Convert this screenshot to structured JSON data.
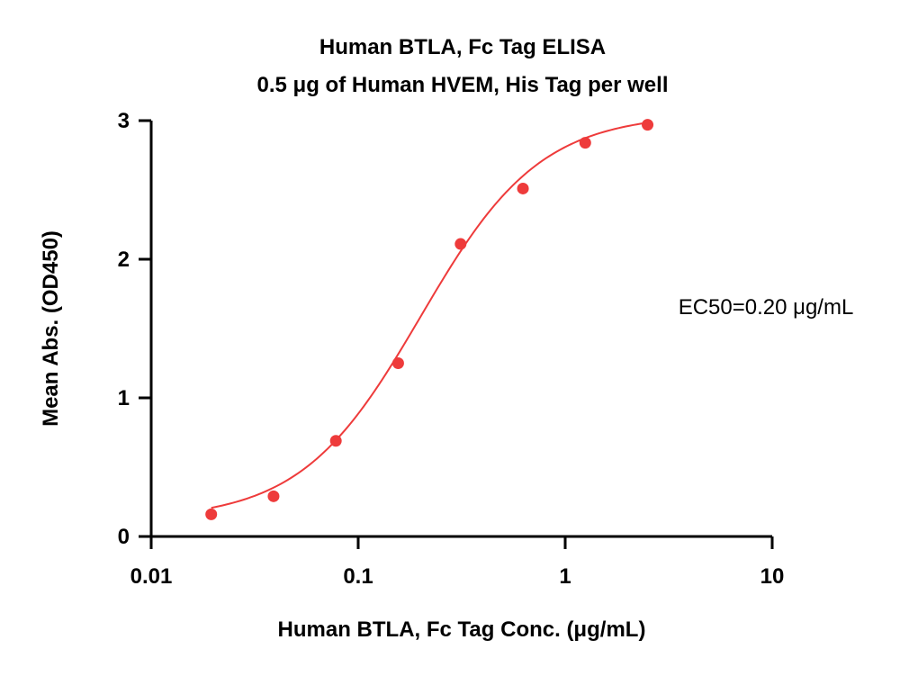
{
  "chart_data": {
    "type": "scatter",
    "title": "Human BTLA, Fc Tag ELISA",
    "subtitle": "0.5 μg of Human HVEM, His Tag per well",
    "xlabel": "Human BTLA, Fc Tag Conc. (μg/mL)",
    "ylabel": "Mean Abs. (OD450)",
    "x_scale": "log",
    "xlim": [
      0.01,
      10
    ],
    "ylim": [
      0,
      3
    ],
    "x_ticks": [
      {
        "value": 0.01,
        "label": "0.01"
      },
      {
        "value": 0.1,
        "label": "0.1"
      },
      {
        "value": 1,
        "label": "1"
      },
      {
        "value": 10,
        "label": "10"
      }
    ],
    "y_ticks": [
      {
        "value": 0,
        "label": "0"
      },
      {
        "value": 1,
        "label": "1"
      },
      {
        "value": 2,
        "label": "2"
      },
      {
        "value": 3,
        "label": "3"
      }
    ],
    "series": [
      {
        "color": "#ee3b3b",
        "points": [
          {
            "x": 0.0195,
            "y": 0.16
          },
          {
            "x": 0.039,
            "y": 0.29
          },
          {
            "x": 0.078,
            "y": 0.69
          },
          {
            "x": 0.156,
            "y": 1.25
          },
          {
            "x": 0.3125,
            "y": 2.11
          },
          {
            "x": 0.625,
            "y": 2.51
          },
          {
            "x": 1.25,
            "y": 2.84
          },
          {
            "x": 2.5,
            "y": 2.97
          }
        ],
        "fit": {
          "model": "4PL",
          "bottom": 0.12,
          "top": 3.05,
          "ec50": 0.2,
          "hill": 1.5
        }
      }
    ],
    "annotations": [
      "EC50=0.20 μg/mL"
    ],
    "grid": false,
    "legend": "none"
  }
}
